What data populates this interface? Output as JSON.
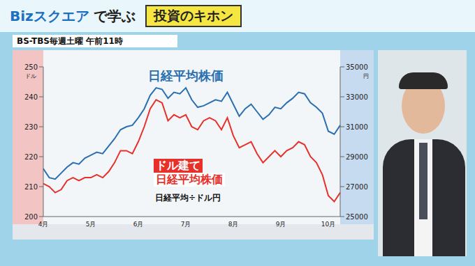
{
  "header": {
    "logo": "Bizスクエア",
    "text": "で学ぶ",
    "badge": "投資のキホン",
    "schedule": "BS-TBS毎週土曜 午前11時"
  },
  "chart_data": {
    "type": "line",
    "categories": [
      "4月",
      null,
      null,
      null,
      null,
      null,
      null,
      null,
      "5月",
      null,
      null,
      null,
      null,
      null,
      null,
      null,
      "6月",
      null,
      null,
      null,
      null,
      null,
      null,
      null,
      "7月",
      null,
      null,
      null,
      null,
      null,
      null,
      null,
      "8月",
      null,
      null,
      null,
      null,
      null,
      null,
      null,
      "9月",
      null,
      null,
      null,
      null,
      null,
      null,
      null,
      "10月",
      null,
      null
    ],
    "series": [
      {
        "name": "日経平均株価",
        "color": "#2a6fb0",
        "axis": "y2",
        "values": [
          28200,
          27600,
          27500,
          27900,
          28300,
          28600,
          28500,
          28900,
          29100,
          29300,
          29200,
          29700,
          30200,
          30800,
          31000,
          31100,
          31600,
          32200,
          33100,
          33600,
          33500,
          32900,
          33300,
          33200,
          33600,
          32800,
          32300,
          32400,
          32600,
          32800,
          32700,
          33300,
          32500,
          31700,
          32200,
          32500,
          32000,
          31500,
          31800,
          32300,
          32200,
          32600,
          32900,
          33300,
          33200,
          32600,
          32300,
          31900,
          30700,
          30500,
          31100
        ]
      },
      {
        "name": "ドル建て\n日経平均株価",
        "color": "#e8302a",
        "values": [
          211,
          210,
          208,
          209,
          212,
          213,
          212,
          213,
          213,
          214,
          213,
          215,
          218,
          222,
          222,
          221,
          225,
          230,
          236,
          239,
          238,
          232,
          234,
          233,
          234,
          230,
          229,
          232,
          233,
          232,
          229,
          233,
          227,
          223,
          224,
          225,
          221,
          218,
          220,
          222,
          220,
          222,
          223,
          225,
          224,
          220,
          218,
          214,
          207,
          205,
          208
        ]
      }
    ],
    "annotations": [
      "日経平均÷ドル円"
    ],
    "ylabel": "ドル",
    "y2label": "円",
    "ylim": [
      200,
      250
    ],
    "yticks": [
      200,
      210,
      220,
      230,
      240,
      250
    ],
    "y2lim": [
      25000,
      35000
    ],
    "y2ticks": [
      25000,
      27000,
      29000,
      31000,
      33000,
      35000
    ],
    "grid": false
  }
}
